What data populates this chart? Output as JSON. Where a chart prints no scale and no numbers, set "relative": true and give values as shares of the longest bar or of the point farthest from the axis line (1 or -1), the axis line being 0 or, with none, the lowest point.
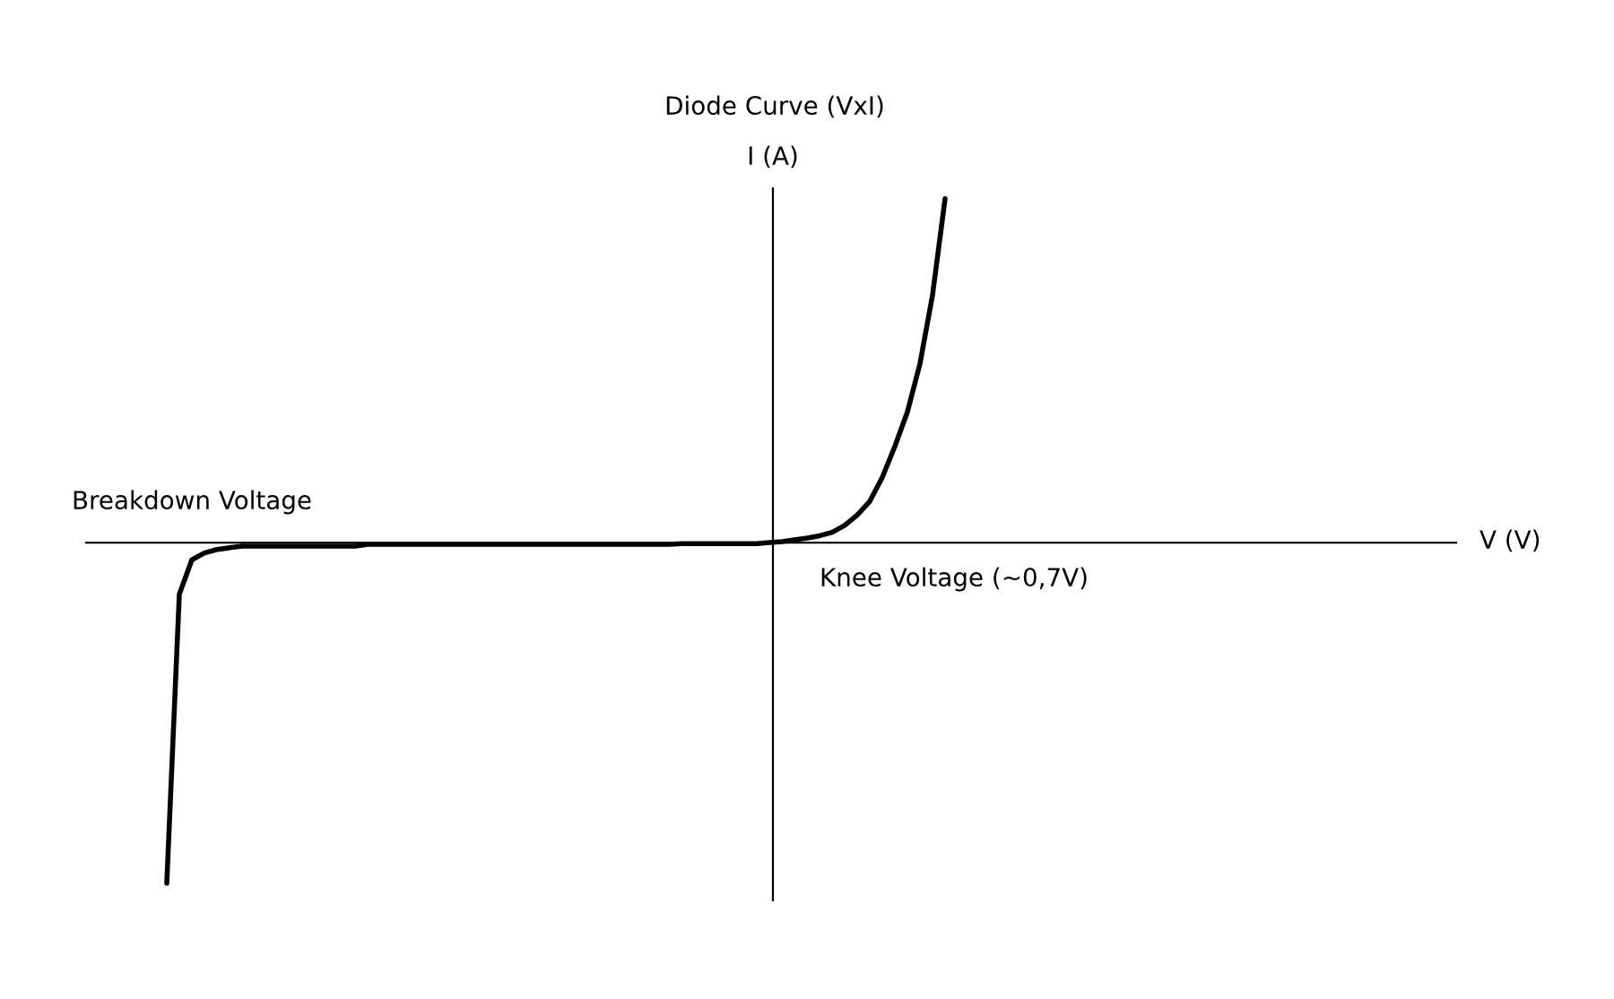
{
  "chart_data": {
    "type": "line",
    "title": "Diode Curve (VxI)",
    "ylabel": "I (A)",
    "relative": true,
    "annotations": [
      "Breakdown Voltage",
      "Knee Voltage (~0,7V)",
      "V (V)"
    ],
    "categories": [
      null,
      null,
      null,
      null,
      null,
      null,
      null,
      null,
      null,
      null,
      null,
      null,
      null,
      null,
      null,
      null,
      null,
      null,
      null,
      null,
      null,
      null,
      null,
      null,
      null,
      null,
      null,
      null,
      null,
      null,
      null,
      null,
      null,
      null,
      null,
      null,
      null,
      null,
      null,
      null,
      null,
      null,
      null,
      null,
      null,
      null,
      null,
      null,
      null,
      null,
      null,
      null,
      null,
      null,
      null,
      null,
      null,
      null,
      null,
      null,
      null,
      null,
      null
    ],
    "series": [
      {
        "color": "#000000",
        "values": [
          -0.99,
          -0.15,
          -0.05,
          -0.03,
          -0.02,
          -0.015,
          -0.01,
          -0.01,
          -0.01,
          -0.01,
          -0.01,
          -0.01,
          -0.01,
          -0.01,
          -0.01,
          -0.01,
          -0.005,
          -0.005,
          -0.005,
          -0.005,
          -0.005,
          -0.005,
          -0.005,
          -0.005,
          -0.005,
          -0.005,
          -0.005,
          -0.005,
          -0.005,
          -0.005,
          -0.005,
          -0.005,
          -0.005,
          -0.005,
          -0.005,
          -0.005,
          -0.005,
          -0.005,
          -0.005,
          -0.005,
          -0.005,
          -0.003,
          -0.003,
          -0.003,
          -0.003,
          -0.003,
          -0.003,
          -0.003,
          0.0,
          0.003,
          0.008,
          0.013,
          0.02,
          0.03,
          0.05,
          0.08,
          0.12,
          0.19,
          0.28,
          0.38,
          0.52,
          0.72,
          1.0
        ]
      }
    ],
    "legend": false,
    "marker": "none",
    "line_style": "solid"
  }
}
